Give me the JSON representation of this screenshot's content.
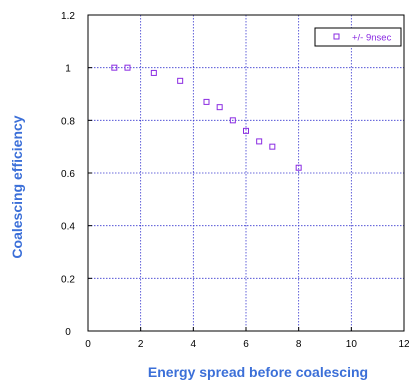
{
  "chart_data": {
    "type": "scatter",
    "xlabel": "Energy spread before coalescing",
    "ylabel": "Coalescing efficiency",
    "xlim": [
      0,
      12
    ],
    "ylim": [
      0,
      1.2
    ],
    "x_ticks": [
      "0",
      "2",
      "4",
      "6",
      "8",
      "10",
      "12"
    ],
    "y_ticks": [
      "0",
      "0.2",
      "0.4",
      "0.6",
      "0.8",
      "1",
      "1.2"
    ],
    "grid": true,
    "legend_position": "top-right",
    "series": [
      {
        "name": "+/- 9nsec",
        "marker": "square-open",
        "color": "#8a2be2",
        "points": [
          {
            "x": 1.0,
            "y": 1.0
          },
          {
            "x": 1.5,
            "y": 1.0
          },
          {
            "x": 2.5,
            "y": 0.98
          },
          {
            "x": 3.5,
            "y": 0.95
          },
          {
            "x": 4.5,
            "y": 0.87
          },
          {
            "x": 5.0,
            "y": 0.85
          },
          {
            "x": 5.5,
            "y": 0.8
          },
          {
            "x": 6.0,
            "y": 0.76
          },
          {
            "x": 6.5,
            "y": 0.72
          },
          {
            "x": 7.0,
            "y": 0.7
          },
          {
            "x": 8.0,
            "y": 0.62
          }
        ]
      }
    ],
    "colors": {
      "axis_title": "#3b6fd8",
      "grid": "#3a3ad0",
      "axis": "#000000"
    }
  }
}
